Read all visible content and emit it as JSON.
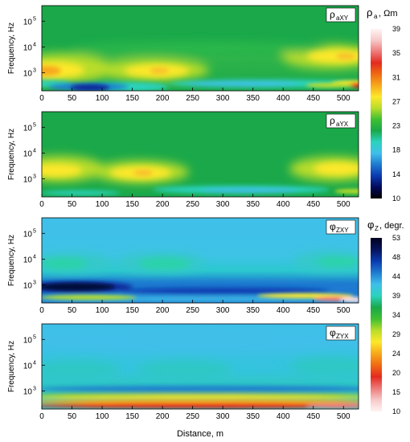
{
  "chart_data": {
    "type": "heatmap",
    "xlabel": "Distance, m",
    "x_ticks": [
      "0",
      "50",
      "100",
      "150",
      "200",
      "250",
      "300",
      "350",
      "400",
      "450",
      "500"
    ],
    "xlim": [
      0,
      525
    ],
    "ylabel": "Frequency, Hz",
    "y_scale": "log",
    "ylim": [
      200,
      400000
    ],
    "y_ticks": [
      {
        "base": "10",
        "exp": "5",
        "value": 100000
      },
      {
        "base": "10",
        "exp": "4",
        "value": 10000
      },
      {
        "base": "10",
        "exp": "3",
        "value": 1000
      }
    ],
    "panels": [
      {
        "label_main": "ρ",
        "label_sub": "aXY",
        "colorbar": "rho"
      },
      {
        "label_main": "ρ",
        "label_sub": "aYX",
        "colorbar": "rho"
      },
      {
        "label_main": "φ",
        "label_sub": "ZXY",
        "colorbar": "phi"
      },
      {
        "label_main": "φ",
        "label_sub": "ZYX",
        "colorbar": "phi"
      }
    ],
    "colorbars": {
      "rho": {
        "title_main": "ρ",
        "title_sub": "a",
        "title_rest": ", Ωm",
        "ticks": [
          "39",
          "35",
          "31",
          "27",
          "23",
          "18",
          "14",
          "10"
        ],
        "colors": [
          "#fff4f4",
          "#f7c8c8",
          "#ee7a7a",
          "#e32b1f",
          "#f06a12",
          "#f7a81c",
          "#fde82a",
          "#b9dd2a",
          "#3fbf32",
          "#1aa84a",
          "#2bd3bf",
          "#3fbfe9",
          "#1f7ad0",
          "#0a3ab0",
          "#020a5a",
          "#000000"
        ]
      },
      "phi": {
        "title_main": "φ",
        "title_sub": "Z",
        "title_rest": ", degr.",
        "ticks": [
          "53",
          "48",
          "44",
          "39",
          "34",
          "29",
          "24",
          "20",
          "15",
          "10"
        ],
        "colors": [
          "#000020",
          "#06145a",
          "#0a3ab0",
          "#1f7ad0",
          "#3fbfe9",
          "#2bd3bf",
          "#1aa84a",
          "#3fbf32",
          "#b9dd2a",
          "#fde82a",
          "#f7a81c",
          "#f06a12",
          "#e32b1f",
          "#ee7a7a",
          "#f7c8c8",
          "#fff4f4"
        ]
      }
    }
  }
}
